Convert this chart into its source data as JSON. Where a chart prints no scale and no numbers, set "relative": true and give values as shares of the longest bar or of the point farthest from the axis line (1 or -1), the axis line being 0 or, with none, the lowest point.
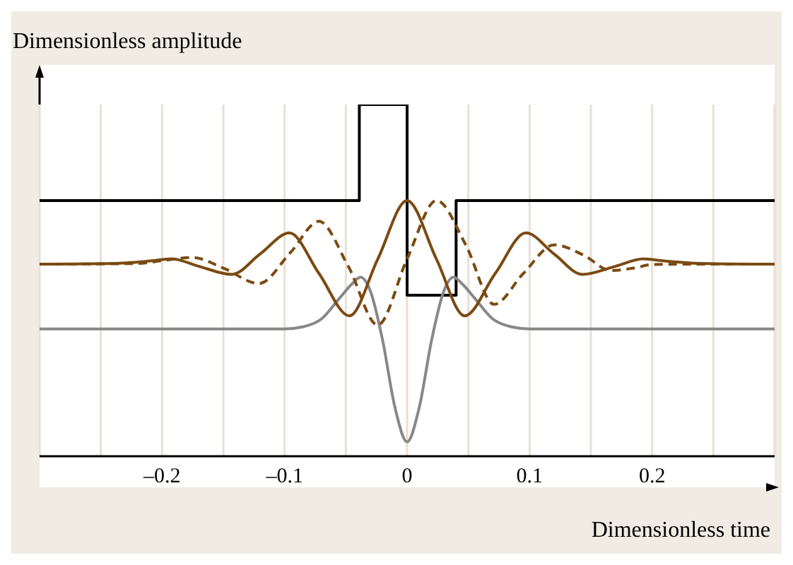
{
  "chart_data": {
    "type": "line",
    "relative": true,
    "xlabel": "Dimensionless time",
    "ylabel": "Dimensionless amplitude",
    "xlim": [
      -0.3,
      0.3
    ],
    "xticks": [
      {
        "value": -0.25,
        "label": null
      },
      {
        "value": -0.2,
        "label": "–0.2"
      },
      {
        "value": -0.15,
        "label": null
      },
      {
        "value": -0.1,
        "label": "–0.1"
      },
      {
        "value": -0.05,
        "label": null
      },
      0,
      {
        "value": 0.05,
        "label": null
      },
      0.1,
      {
        "value": 0.15,
        "label": null
      },
      0.2,
      {
        "value": 0.25,
        "label": null
      }
    ],
    "grid": "x",
    "marker": "none",
    "series": [
      {
        "type": "step",
        "color": "#000000",
        "line_style": "solid",
        "x": [
          -0.3,
          -0.039,
          0,
          0.04,
          0.3
        ],
        "values": [
          0.727,
          1,
          0.458,
          0.727,
          0.727
        ]
      },
      {
        "color": "#888888",
        "line_style": "solid",
        "x": [
          -0.3,
          -0.1,
          -0.085,
          -0.07,
          -0.055,
          -0.045,
          -0.038,
          -0.03,
          -0.02,
          -0.01,
          0,
          0.01,
          0.02,
          0.03,
          0.038,
          0.045,
          0.055,
          0.07,
          0.085,
          0.1,
          0.3
        ],
        "values": [
          0.362,
          0.362,
          0.368,
          0.39,
          0.45,
          0.49,
          0.509,
          0.47,
          0.33,
          0.14,
          0.041,
          0.14,
          0.33,
          0.47,
          0.509,
          0.49,
          0.45,
          0.39,
          0.368,
          0.362,
          0.362
        ]
      },
      {
        "color": "#7b4a12",
        "line_style": "solid",
        "x": [
          -0.3,
          -0.24,
          -0.21,
          -0.192,
          -0.17,
          -0.143,
          -0.12,
          -0.096,
          -0.072,
          -0.047,
          -0.024,
          0,
          0.024,
          0.047,
          0.072,
          0.097,
          0.12,
          0.143,
          0.17,
          0.193,
          0.21,
          0.24,
          0.3
        ],
        "values": [
          0.546,
          0.548,
          0.555,
          0.561,
          0.54,
          0.517,
          0.575,
          0.635,
          0.52,
          0.399,
          0.56,
          0.727,
          0.56,
          0.399,
          0.52,
          0.635,
          0.575,
          0.517,
          0.54,
          0.561,
          0.555,
          0.548,
          0.546
        ]
      },
      {
        "color": "#7b4a12",
        "line_style": "dashed",
        "x": [
          -0.3,
          -0.22,
          -0.2,
          -0.175,
          -0.15,
          -0.121,
          -0.095,
          -0.072,
          -0.048,
          -0.024,
          0,
          0.024,
          0.048,
          0.071,
          0.095,
          0.12,
          0.145,
          0.166,
          0.185,
          0.2,
          0.22,
          0.3
        ],
        "values": [
          0.546,
          0.548,
          0.556,
          0.565,
          0.535,
          0.491,
          0.58,
          0.668,
          0.54,
          0.373,
          0.561,
          0.727,
          0.6,
          0.432,
          0.52,
          0.601,
          0.57,
          0.528,
          0.535,
          0.545,
          0.546,
          0.546
        ]
      }
    ]
  }
}
